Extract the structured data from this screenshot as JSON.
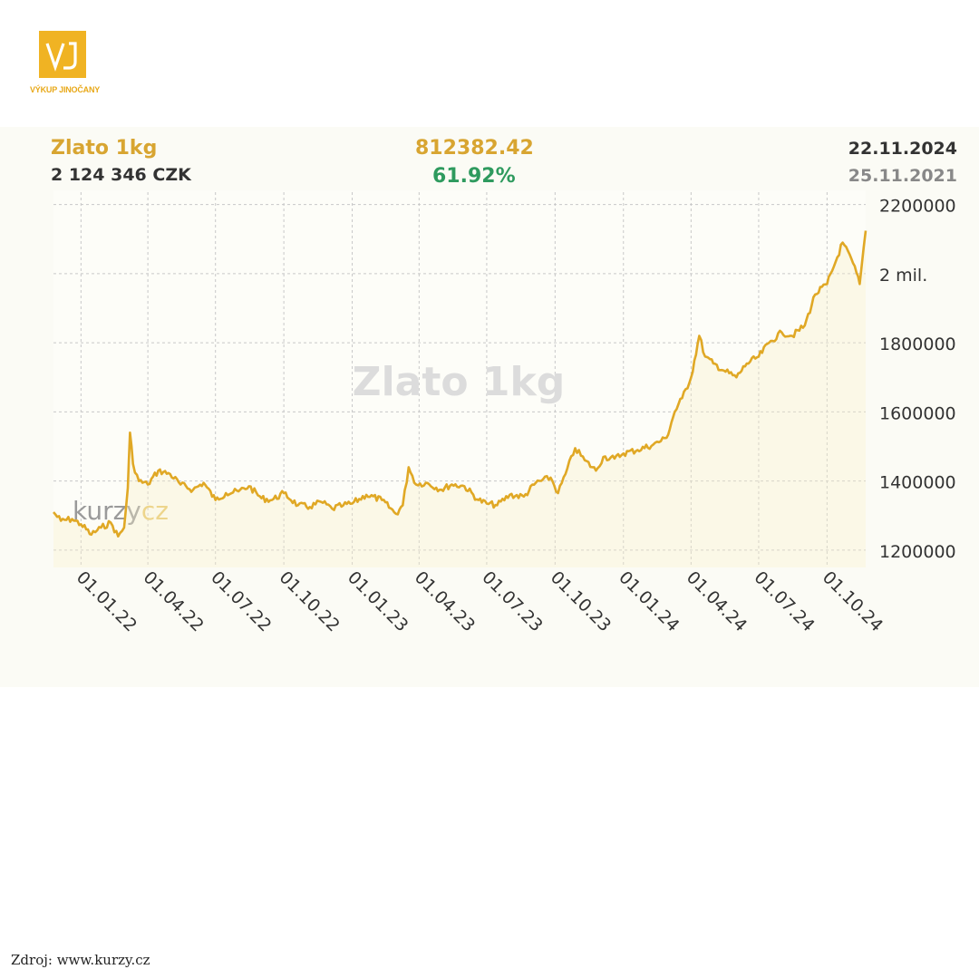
{
  "logo": {
    "mark": "VJ",
    "text": "VÝKUP JINOČANY",
    "color": "#f0b323"
  },
  "header": {
    "title": "Zlato 1kg",
    "price": "2 124 346 CZK",
    "change_abs": "812382.42",
    "change_pct": "61.92%",
    "date_end": "22.11.2024",
    "date_start": "25.11.2021"
  },
  "watermark": "Zlato 1kg",
  "brand_watermark": {
    "left": "kurzy",
    "right": "cz"
  },
  "source": "Zdroj: www.kurzy.cz",
  "colors": {
    "line": "#e0a825",
    "title": "#d8a531",
    "positive": "#2e9a5e"
  },
  "chart_data": {
    "type": "line",
    "title": "Zlato 1kg",
    "xlabel": "",
    "ylabel": "",
    "x_range": [
      "2021-11-25",
      "2024-11-22"
    ],
    "ylim": [
      1150000,
      2220000
    ],
    "grid": true,
    "y_ticks": [
      {
        "value": 1200000,
        "label": "1200000"
      },
      {
        "value": 1400000,
        "label": "1400000"
      },
      {
        "value": 1600000,
        "label": "1600000"
      },
      {
        "value": 1800000,
        "label": "1800000"
      },
      {
        "value": 2000000,
        "label": "2 mil."
      },
      {
        "value": 2200000,
        "label": "2200000"
      }
    ],
    "x_ticks": [
      {
        "date": "2022-01-01",
        "label": "01.01.22"
      },
      {
        "date": "2022-04-01",
        "label": "01.04.22"
      },
      {
        "date": "2022-07-01",
        "label": "01.07.22"
      },
      {
        "date": "2022-10-01",
        "label": "01.10.22"
      },
      {
        "date": "2023-01-01",
        "label": "01.01.23"
      },
      {
        "date": "2023-04-01",
        "label": "01.04.23"
      },
      {
        "date": "2023-07-01",
        "label": "01.07.23"
      },
      {
        "date": "2023-10-01",
        "label": "01.10.23"
      },
      {
        "date": "2024-01-01",
        "label": "01.01.24"
      },
      {
        "date": "2024-04-01",
        "label": "01.04.24"
      },
      {
        "date": "2024-07-01",
        "label": "01.07.24"
      },
      {
        "date": "2024-10-01",
        "label": "01.10.24"
      }
    ],
    "series": [
      {
        "name": "Zlato 1kg",
        "points": [
          [
            "2021-11-25",
            1310000
          ],
          [
            "2021-12-05",
            1285000
          ],
          [
            "2021-12-20",
            1290000
          ],
          [
            "2022-01-01",
            1275000
          ],
          [
            "2022-01-15",
            1245000
          ],
          [
            "2022-01-28",
            1265000
          ],
          [
            "2022-02-10",
            1280000
          ],
          [
            "2022-02-20",
            1240000
          ],
          [
            "2022-02-28",
            1265000
          ],
          [
            "2022-03-05",
            1380000
          ],
          [
            "2022-03-08",
            1540000
          ],
          [
            "2022-03-12",
            1450000
          ],
          [
            "2022-03-20",
            1400000
          ],
          [
            "2022-04-01",
            1390000
          ],
          [
            "2022-04-15",
            1430000
          ],
          [
            "2022-05-01",
            1420000
          ],
          [
            "2022-05-15",
            1390000
          ],
          [
            "2022-06-01",
            1375000
          ],
          [
            "2022-06-15",
            1395000
          ],
          [
            "2022-07-01",
            1345000
          ],
          [
            "2022-07-15",
            1365000
          ],
          [
            "2022-08-01",
            1370000
          ],
          [
            "2022-08-15",
            1385000
          ],
          [
            "2022-09-01",
            1350000
          ],
          [
            "2022-09-15",
            1345000
          ],
          [
            "2022-10-01",
            1365000
          ],
          [
            "2022-10-20",
            1330000
          ],
          [
            "2022-11-05",
            1325000
          ],
          [
            "2022-11-20",
            1340000
          ],
          [
            "2022-12-05",
            1320000
          ],
          [
            "2022-12-20",
            1330000
          ],
          [
            "2023-01-01",
            1335000
          ],
          [
            "2023-01-20",
            1360000
          ],
          [
            "2023-02-10",
            1345000
          ],
          [
            "2023-03-01",
            1305000
          ],
          [
            "2023-03-10",
            1330000
          ],
          [
            "2023-03-18",
            1440000
          ],
          [
            "2023-03-28",
            1390000
          ],
          [
            "2023-04-10",
            1395000
          ],
          [
            "2023-05-01",
            1375000
          ],
          [
            "2023-05-15",
            1390000
          ],
          [
            "2023-06-01",
            1385000
          ],
          [
            "2023-06-20",
            1345000
          ],
          [
            "2023-07-01",
            1335000
          ],
          [
            "2023-07-15",
            1330000
          ],
          [
            "2023-08-01",
            1360000
          ],
          [
            "2023-08-20",
            1355000
          ],
          [
            "2023-09-05",
            1395000
          ],
          [
            "2023-09-25",
            1410000
          ],
          [
            "2023-10-05",
            1365000
          ],
          [
            "2023-10-15",
            1420000
          ],
          [
            "2023-10-28",
            1495000
          ],
          [
            "2023-11-10",
            1460000
          ],
          [
            "2023-11-25",
            1430000
          ],
          [
            "2023-12-05",
            1470000
          ],
          [
            "2023-12-20",
            1465000
          ],
          [
            "2024-01-01",
            1480000
          ],
          [
            "2024-01-20",
            1490000
          ],
          [
            "2024-02-10",
            1505000
          ],
          [
            "2024-02-28",
            1525000
          ],
          [
            "2024-03-10",
            1600000
          ],
          [
            "2024-03-20",
            1640000
          ],
          [
            "2024-04-01",
            1700000
          ],
          [
            "2024-04-12",
            1820000
          ],
          [
            "2024-04-20",
            1760000
          ],
          [
            "2024-05-01",
            1740000
          ],
          [
            "2024-05-15",
            1720000
          ],
          [
            "2024-06-01",
            1700000
          ],
          [
            "2024-06-15",
            1740000
          ],
          [
            "2024-07-01",
            1760000
          ],
          [
            "2024-07-15",
            1800000
          ],
          [
            "2024-08-01",
            1830000
          ],
          [
            "2024-08-15",
            1820000
          ],
          [
            "2024-09-01",
            1850000
          ],
          [
            "2024-09-15",
            1940000
          ],
          [
            "2024-10-01",
            1970000
          ],
          [
            "2024-10-10",
            2020000
          ],
          [
            "2024-10-22",
            2090000
          ],
          [
            "2024-11-05",
            2030000
          ],
          [
            "2024-11-14",
            1970000
          ],
          [
            "2024-11-22",
            2124346
          ]
        ]
      }
    ]
  }
}
